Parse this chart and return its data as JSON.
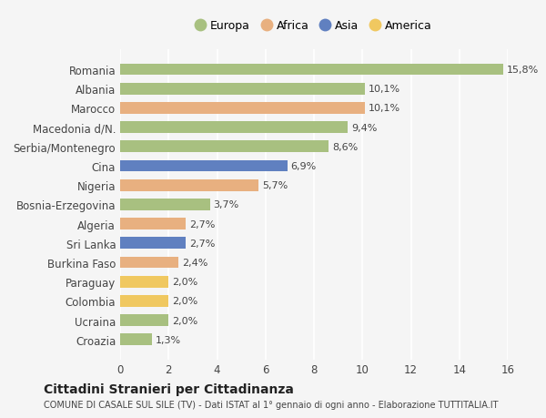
{
  "categories": [
    "Croazia",
    "Ucraina",
    "Colombia",
    "Paraguay",
    "Burkina Faso",
    "Sri Lanka",
    "Algeria",
    "Bosnia-Erzegovina",
    "Nigeria",
    "Cina",
    "Serbia/Montenegro",
    "Macedonia d/N.",
    "Marocco",
    "Albania",
    "Romania"
  ],
  "values": [
    1.3,
    2.0,
    2.0,
    2.0,
    2.4,
    2.7,
    2.7,
    3.7,
    5.7,
    6.9,
    8.6,
    9.4,
    10.1,
    10.1,
    15.8
  ],
  "labels": [
    "1,3%",
    "2,0%",
    "2,0%",
    "2,0%",
    "2,4%",
    "2,7%",
    "2,7%",
    "3,7%",
    "5,7%",
    "6,9%",
    "8,6%",
    "9,4%",
    "10,1%",
    "10,1%",
    "15,8%"
  ],
  "continent": [
    "Europa",
    "Europa",
    "America",
    "America",
    "Africa",
    "Asia",
    "Africa",
    "Europa",
    "Africa",
    "Asia",
    "Europa",
    "Europa",
    "Africa",
    "Europa",
    "Europa"
  ],
  "colors": {
    "Europa": "#a8c080",
    "Africa": "#e8b080",
    "Asia": "#6080c0",
    "America": "#f0c860"
  },
  "xlim": [
    0,
    16
  ],
  "xticks": [
    0,
    2,
    4,
    6,
    8,
    10,
    12,
    14,
    16
  ],
  "background_color": "#f5f5f5",
  "grid_color": "#ffffff",
  "bar_height": 0.6,
  "title": "Cittadini Stranieri per Cittadinanza",
  "subtitle": "COMUNE DI CASALE SUL SILE (TV) - Dati ISTAT al 1° gennaio di ogni anno - Elaborazione TUTTITALIA.IT",
  "legend_order": [
    "Europa",
    "Africa",
    "Asia",
    "America"
  ]
}
